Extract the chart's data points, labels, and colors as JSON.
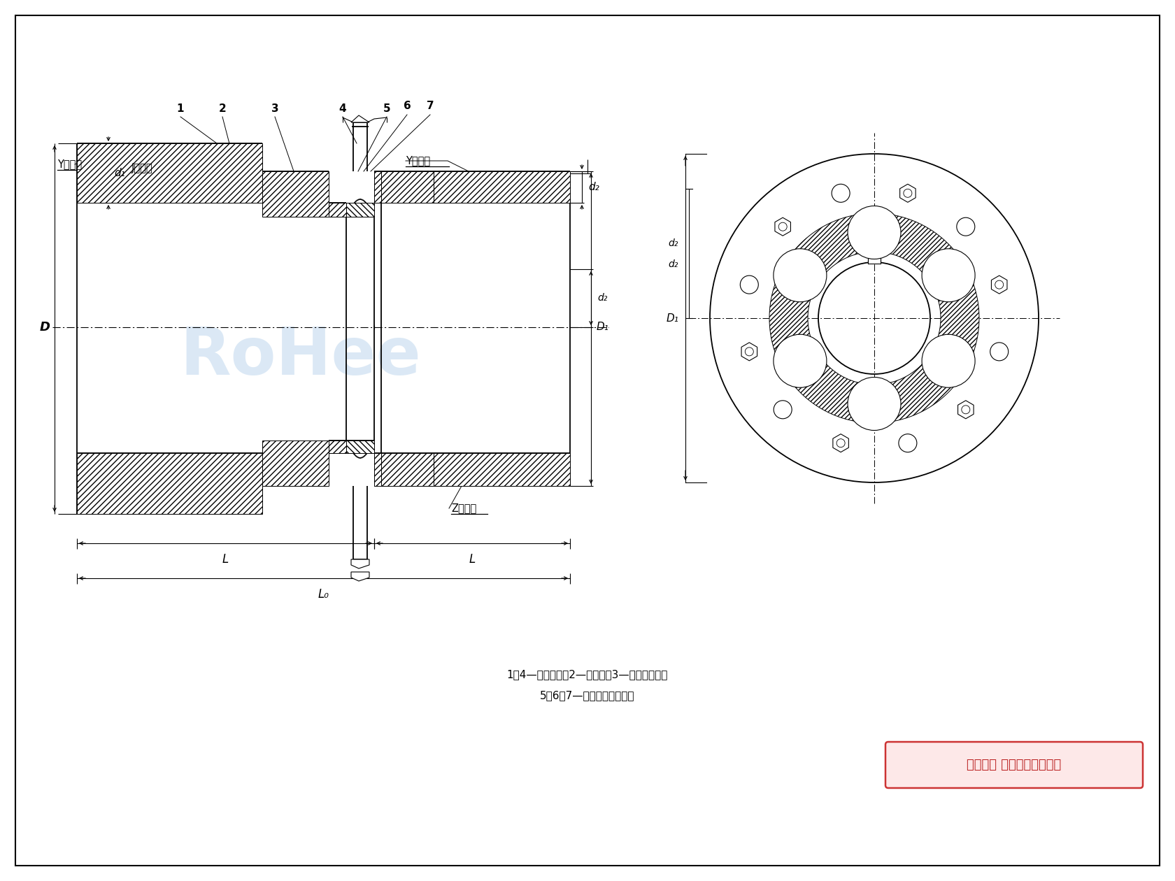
{
  "bg_color": "#ffffff",
  "wm_color": "#c8ddf0",
  "caption1": "1、4—半联轴器；2—弹性件；3—法兰连接件；",
  "caption2": "5、6、7—螺栓、螺母、尺片",
  "copyright": "版权所有 侵权必被严厉追究",
  "lbl_Y_L": "Y型轴孔",
  "lbl_J": "J型轴孔",
  "lbl_Y_R": "Y型轴孔",
  "lbl_Z": "Z型轴孔",
  "lbl_D": "D",
  "lbl_d1": "d₁",
  "lbl_d2": "d₂",
  "lbl_D1": "D₁",
  "lbl_dz": "d₂",
  "lbl_L": "L",
  "lbl_L0": "L₀",
  "num_labels": [
    "1",
    "2",
    "3",
    "4",
    "5",
    "6",
    "7"
  ]
}
